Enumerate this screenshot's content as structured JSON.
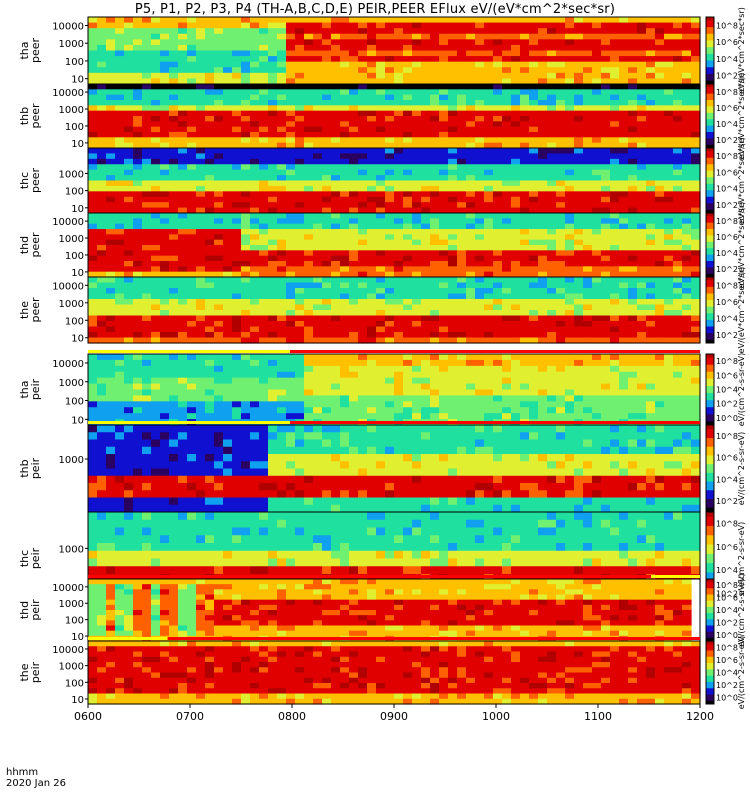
{
  "title": "P5, P1, P2, P3, P4 (TH-A,B,C,D,E) PEIR,PEER EFlux eV/(eV*cm^2*sec*sr)",
  "footer": {
    "line1": "hhmm",
    "line2": "2020 Jan 26"
  },
  "x_axis": {
    "ticks": [
      "0600",
      "0700",
      "0800",
      "0900",
      "1000",
      "1100",
      "1200"
    ],
    "range": [
      "0600",
      "1200"
    ]
  },
  "colors": {
    "c0": "#000000",
    "c1": "#2a0060",
    "c2": "#1010d0",
    "c3": "#10a0f0",
    "c4": "#20e0a0",
    "c5": "#70f070",
    "c6": "#e0f030",
    "c7": "#ffc000",
    "c8": "#ff6000",
    "c9": "#e00000",
    "c10": "#b00000"
  },
  "chart_data": [
    {
      "type": "heatmap",
      "name": "tha peer",
      "label": [
        "tha",
        "peer"
      ],
      "ylabel_unit": "eV",
      "yticks": [
        "10",
        "100",
        "1000",
        "10000"
      ],
      "ylim": [
        5,
        30000
      ],
      "colorbar": {
        "ticks": [
          "10^2",
          "10^4",
          "10^6",
          "10^8"
        ],
        "label": "eV/(eV*cm^2*sec*sr)"
      },
      "status_bar": "",
      "pattern": "tha_peer"
    },
    {
      "type": "heatmap",
      "name": "thb peer",
      "label": [
        "thb",
        "peer"
      ],
      "yticks": [
        "10",
        "100",
        "1000",
        "10000"
      ],
      "ylim": [
        5,
        30000
      ],
      "colorbar": {
        "ticks": [
          "10^2",
          "10^4",
          "10^6",
          "10^8"
        ],
        "label": "eV/(eV*cm^2*sec*sr)"
      },
      "status_bar": "",
      "pattern": "thb_peer"
    },
    {
      "type": "heatmap",
      "name": "thc peer",
      "label": [
        "thc",
        "peer"
      ],
      "yticks": [
        "10",
        "100",
        "1000"
      ],
      "ylim": [
        5,
        30000
      ],
      "colorbar": {
        "ticks": [
          "10^2",
          "10^4",
          "10^6",
          "10^8"
        ],
        "label": "eV/(eV*cm^2*sec*sr)"
      },
      "status_bar": "",
      "pattern": "thc_peer"
    },
    {
      "type": "heatmap",
      "name": "thd peer",
      "label": [
        "thd",
        "peer"
      ],
      "yticks": [
        "10",
        "100",
        "1000",
        "10000"
      ],
      "ylim": [
        5,
        30000
      ],
      "colorbar": {
        "ticks": [
          "10^2",
          "10^4",
          "10^6",
          "10^8"
        ],
        "label": "eV/(eV*cm^2*sec*sr)"
      },
      "status_bar": "",
      "pattern": "thd_peer"
    },
    {
      "type": "heatmap",
      "name": "the peer",
      "label": [
        "the",
        "peer"
      ],
      "yticks": [
        "10",
        "100",
        "1000",
        "10000"
      ],
      "ylim": [
        5,
        30000
      ],
      "colorbar": {
        "ticks": [
          "10^2",
          "10^4",
          "10^6",
          "10^8"
        ],
        "label": "eV/(eV*cm^2*sec*sr)"
      },
      "status_bar": "",
      "pattern": "the_peer"
    },
    {
      "type": "heatmap",
      "name": "tha peir",
      "label": [
        "tha",
        "peir"
      ],
      "yticks": [
        "10",
        "100",
        "1000",
        "10000"
      ],
      "ylim": [
        5,
        30000
      ],
      "colorbar": {
        "ticks": [
          "10^0",
          "10^2",
          "10^4",
          "10^6",
          "10^8"
        ],
        "label": "eV/(cm^2-s-sr-eV)"
      },
      "status_bar": "yellow-then-red",
      "pattern": "tha_peir"
    },
    {
      "type": "heatmap",
      "name": "thb peir",
      "label": [
        "thb",
        "peir"
      ],
      "yticks": [
        "1000"
      ],
      "ylim": [
        5,
        30000
      ],
      "colorbar": {
        "ticks": [
          "10^2",
          "10^4",
          "10^6",
          "10^8"
        ],
        "label": "eV/(cm^2-s-sr-eV)"
      },
      "status_bar": "yellow-then-red",
      "pattern": "thb_peir"
    },
    {
      "type": "heatmap",
      "name": "thc peir",
      "label": [
        "thc",
        "peir"
      ],
      "yticks": [
        "1000"
      ],
      "ylim": [
        5,
        30000
      ],
      "colorbar": {
        "ticks": [
          "10^2",
          "10^4",
          "10^6",
          "10^8"
        ],
        "label": "eV/(cm^2-s-sr-eV)"
      },
      "status_bar": "",
      "pattern": "thc_peir"
    },
    {
      "type": "heatmap",
      "name": "thd peir",
      "label": [
        "thd",
        "peir"
      ],
      "yticks": [
        "10",
        "100",
        "1000",
        "10000"
      ],
      "ylim": [
        5,
        30000
      ],
      "colorbar": {
        "ticks": [
          "10^0",
          "10^2",
          "10^4",
          "10^6",
          "10^8"
        ],
        "label": "eV/(cm^2-s-sr-eV)"
      },
      "status_bar": "red-then-yellow",
      "pattern": "thd_peir"
    },
    {
      "type": "heatmap",
      "name": "the peir",
      "label": [
        "the",
        "peir"
      ],
      "yticks": [
        "10",
        "100",
        "1000",
        "10000"
      ],
      "ylim": [
        5,
        30000
      ],
      "colorbar": {
        "ticks": [
          "10^0",
          "10^2",
          "10^4",
          "10^6",
          "10^8"
        ],
        "label": "eV/(cm^2-s-sr-eV)"
      },
      "status_bar": "yellow-then-red",
      "pattern": "the_peir"
    }
  ]
}
